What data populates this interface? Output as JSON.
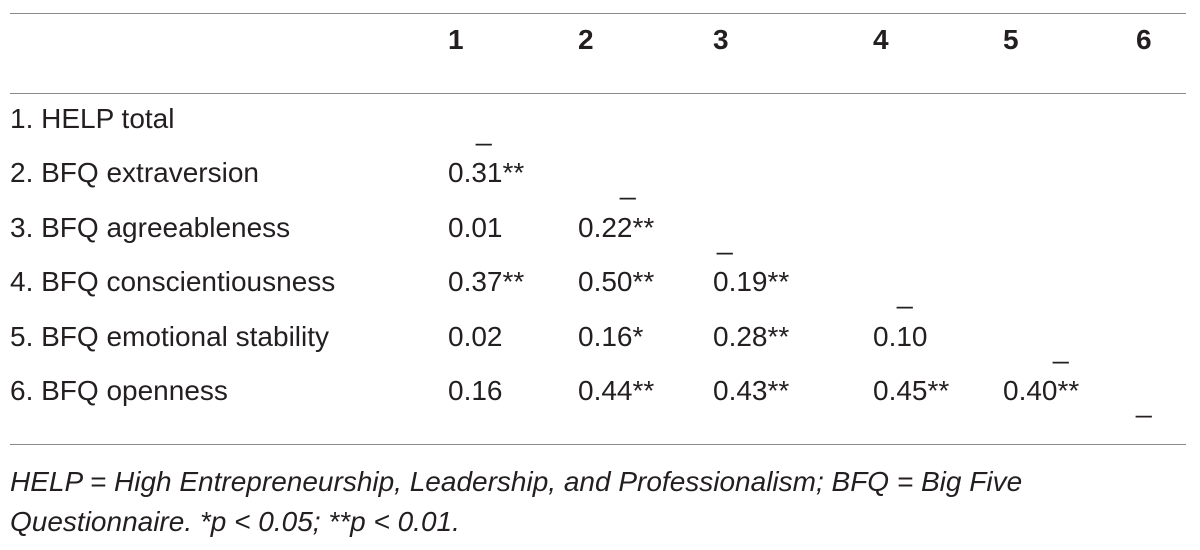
{
  "table": {
    "column_headers": [
      "1",
      "2",
      "3",
      "4",
      "5",
      "6"
    ],
    "rows": [
      {
        "label": "1. HELP total",
        "values": [
          "_",
          "",
          "",
          "",
          "",
          ""
        ]
      },
      {
        "label": "2. BFQ extraversion",
        "values": [
          "0.31**",
          "_",
          "",
          "",
          "",
          ""
        ]
      },
      {
        "label": "3. BFQ agreeableness",
        "values": [
          "0.01",
          "0.22**",
          "_",
          "",
          "",
          ""
        ]
      },
      {
        "label": "4. BFQ conscientiousness",
        "values": [
          "0.37**",
          "0.50**",
          "0.19**",
          "_",
          "",
          ""
        ]
      },
      {
        "label": "5. BFQ emotional stability",
        "values": [
          "0.02",
          "0.16*",
          "0.28**",
          "0.10",
          "_",
          ""
        ]
      },
      {
        "label": "6. BFQ openness",
        "values": [
          "0.16",
          "0.44**",
          "0.43**",
          "0.45**",
          "0.40**",
          "_"
        ]
      }
    ]
  },
  "note": {
    "line1": "HELP = High Entrepreneurship, Leadership, and Professionalism; BFQ = Big Five",
    "line2": "Questionnaire. *p < 0.05; **p < 0.01."
  }
}
